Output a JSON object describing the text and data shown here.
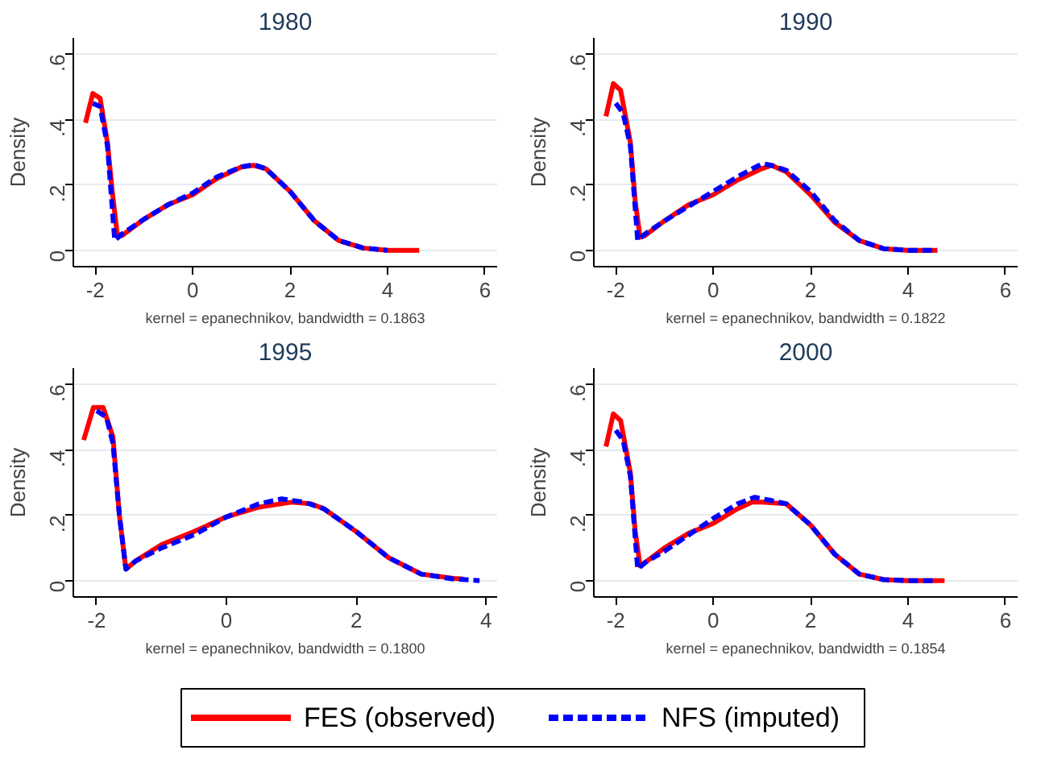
{
  "chart_data": [
    {
      "type": "line",
      "title": "1980",
      "xlabel": "kernel = epanechnikov, bandwidth = 0.1863",
      "ylabel": "Density",
      "xlim": [
        -2.45,
        6.25
      ],
      "ylim": [
        -0.05,
        0.65
      ],
      "xticks": [
        -2,
        0,
        2,
        4,
        6
      ],
      "yticks": [
        0,
        {
          "value": 0.2,
          "label": ".2"
        },
        {
          "value": 0.4,
          "label": ".4"
        },
        {
          "value": 0.6,
          "label": ".6"
        }
      ],
      "grid": "y",
      "series": [
        {
          "color": "#ff0000",
          "line_style": "solid",
          "x": [
            -2.2,
            -2.05,
            -1.9,
            -1.75,
            -1.65,
            -1.55,
            -1.45,
            -1.0,
            -0.5,
            0,
            0.5,
            1.0,
            1.25,
            1.5,
            2.0,
            2.5,
            3.0,
            3.5,
            4.0,
            4.65
          ],
          "values": [
            0.39,
            0.48,
            0.465,
            0.33,
            0.18,
            0.05,
            0.045,
            0.095,
            0.14,
            0.17,
            0.22,
            0.255,
            0.26,
            0.25,
            0.18,
            0.09,
            0.03,
            0.007,
            0.0,
            0.0
          ]
        },
        {
          "color": "#0000ff",
          "line_style": "dashed",
          "x": [
            -2.05,
            -1.9,
            -1.75,
            -1.6,
            -1.45,
            -1.0,
            -0.5,
            0,
            0.5,
            1.0,
            1.25,
            1.5,
            2.0,
            2.5,
            3.0,
            3.5,
            4.0
          ],
          "values": [
            0.45,
            0.44,
            0.32,
            0.03,
            0.05,
            0.095,
            0.14,
            0.175,
            0.225,
            0.255,
            0.262,
            0.25,
            0.18,
            0.09,
            0.03,
            0.007,
            0.0
          ]
        }
      ]
    },
    {
      "type": "line",
      "title": "1990",
      "xlabel": "kernel = epanechnikov, bandwidth = 0.1822",
      "ylabel": "Density",
      "xlim": [
        -2.45,
        6.25
      ],
      "ylim": [
        -0.05,
        0.65
      ],
      "xticks": [
        -2,
        0,
        2,
        4,
        6
      ],
      "yticks": [
        0,
        {
          "value": 0.2,
          "label": ".2"
        },
        {
          "value": 0.4,
          "label": ".4"
        },
        {
          "value": 0.6,
          "label": ".6"
        }
      ],
      "grid": "y",
      "series": [
        {
          "color": "#ff0000",
          "line_style": "solid",
          "x": [
            -2.2,
            -2.05,
            -1.9,
            -1.7,
            -1.6,
            -1.5,
            -1.4,
            -1.0,
            -0.5,
            0,
            0.5,
            1.0,
            1.2,
            1.5,
            2.0,
            2.5,
            3.0,
            3.5,
            4.0,
            4.6
          ],
          "values": [
            0.41,
            0.51,
            0.49,
            0.33,
            0.15,
            0.04,
            0.045,
            0.09,
            0.14,
            0.17,
            0.215,
            0.25,
            0.26,
            0.24,
            0.17,
            0.085,
            0.03,
            0.005,
            0.0,
            0.0
          ]
        },
        {
          "color": "#0000ff",
          "line_style": "dashed",
          "x": [
            -2.0,
            -1.85,
            -1.7,
            -1.55,
            -1.4,
            -1.0,
            -0.5,
            0,
            0.5,
            1.0,
            1.2,
            1.5,
            2.0,
            2.5,
            3.0,
            3.5,
            4.0,
            4.6
          ],
          "values": [
            0.45,
            0.42,
            0.32,
            0.03,
            0.05,
            0.09,
            0.135,
            0.18,
            0.225,
            0.265,
            0.26,
            0.245,
            0.18,
            0.09,
            0.03,
            0.005,
            0.0,
            0.0
          ]
        }
      ]
    },
    {
      "type": "line",
      "title": "1995",
      "xlabel": "kernel = epanechnikov, bandwidth = 0.1800",
      "ylabel": "Density",
      "xlim": [
        -2.36,
        4.17
      ],
      "ylim": [
        -0.05,
        0.65
      ],
      "xticks": [
        -2,
        0,
        2,
        4
      ],
      "yticks": [
        0,
        {
          "value": 0.2,
          "label": ".2"
        },
        {
          "value": 0.4,
          "label": ".4"
        },
        {
          "value": 0.6,
          "label": ".6"
        }
      ],
      "grid": "y",
      "series": [
        {
          "color": "#ff0000",
          "line_style": "solid",
          "x": [
            -2.2,
            -2.05,
            -1.9,
            -1.75,
            -1.65,
            -1.55,
            -1.4,
            -1.0,
            -0.5,
            0,
            0.5,
            1.0,
            1.3,
            1.5,
            2.0,
            2.5,
            3.0,
            3.5,
            3.65
          ],
          "values": [
            0.43,
            0.53,
            0.53,
            0.44,
            0.2,
            0.035,
            0.06,
            0.11,
            0.15,
            0.195,
            0.225,
            0.24,
            0.235,
            0.22,
            0.15,
            0.07,
            0.02,
            0.007,
            0.005
          ]
        },
        {
          "color": "#0000ff",
          "line_style": "dashed",
          "x": [
            -2.0,
            -1.85,
            -1.75,
            -1.65,
            -1.55,
            -1.4,
            -1.0,
            -0.5,
            0,
            0.5,
            0.85,
            1.2,
            1.5,
            2.0,
            2.5,
            3.0,
            3.5,
            3.9
          ],
          "values": [
            0.52,
            0.5,
            0.42,
            0.2,
            0.035,
            0.06,
            0.1,
            0.14,
            0.195,
            0.235,
            0.25,
            0.24,
            0.22,
            0.15,
            0.07,
            0.02,
            0.005,
            0.0
          ]
        }
      ]
    },
    {
      "type": "line",
      "title": "2000",
      "xlabel": "kernel = epanechnikov, bandwidth = 0.1854",
      "ylabel": "Density",
      "xlim": [
        -2.45,
        6.25
      ],
      "ylim": [
        -0.05,
        0.65
      ],
      "xticks": [
        -2,
        0,
        2,
        4,
        6
      ],
      "yticks": [
        0,
        {
          "value": 0.2,
          "label": ".2"
        },
        {
          "value": 0.4,
          "label": ".4"
        },
        {
          "value": 0.6,
          "label": ".6"
        }
      ],
      "grid": "y",
      "legend": "bottom",
      "series": [
        {
          "name": "FES (observed)",
          "color": "#ff0000",
          "line_style": "solid",
          "x": [
            -2.2,
            -2.05,
            -1.9,
            -1.7,
            -1.6,
            -1.5,
            -1.4,
            -1.0,
            -0.5,
            0,
            0.5,
            0.8,
            1.0,
            1.5,
            2.0,
            2.5,
            3.0,
            3.5,
            4.0,
            4.75
          ],
          "values": [
            0.41,
            0.51,
            0.49,
            0.33,
            0.15,
            0.045,
            0.055,
            0.1,
            0.145,
            0.175,
            0.22,
            0.24,
            0.24,
            0.235,
            0.17,
            0.08,
            0.02,
            0.003,
            0.0,
            0.0
          ]
        },
        {
          "name": "NFS (imputed)",
          "color": "#0000ff",
          "line_style": "dashed",
          "x": [
            -2.0,
            -1.85,
            -1.7,
            -1.55,
            -1.4,
            -1.0,
            -0.5,
            0,
            0.5,
            0.85,
            1.2,
            1.5,
            2.0,
            2.5,
            3.0,
            3.5,
            4.0,
            4.6
          ],
          "values": [
            0.46,
            0.43,
            0.32,
            0.035,
            0.055,
            0.09,
            0.14,
            0.19,
            0.235,
            0.255,
            0.245,
            0.235,
            0.17,
            0.08,
            0.02,
            0.003,
            0.0,
            0.0
          ]
        }
      ]
    }
  ]
}
